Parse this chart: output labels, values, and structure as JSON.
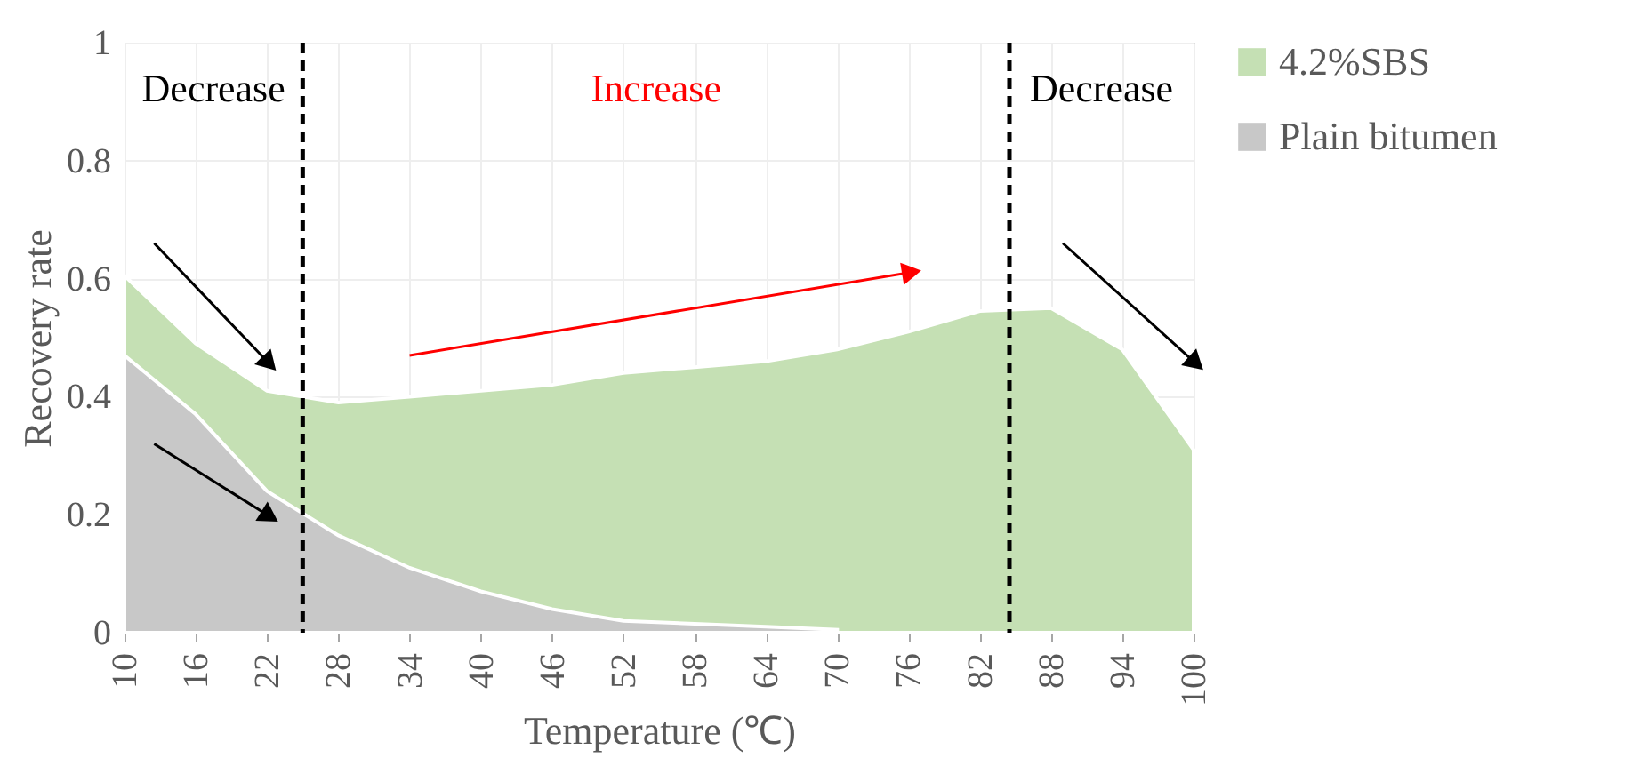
{
  "chart_data": {
    "type": "area",
    "xlabel": "Temperature (℃)",
    "ylabel": "Recovery rate",
    "x": [
      10,
      16,
      22,
      28,
      34,
      40,
      46,
      52,
      58,
      64,
      70,
      76,
      82,
      88,
      94,
      100
    ],
    "xlim": [
      10,
      100
    ],
    "xticks": [
      10,
      16,
      22,
      28,
      34,
      40,
      46,
      52,
      58,
      64,
      70,
      76,
      82,
      88,
      94,
      100
    ],
    "ylim": [
      0,
      1
    ],
    "yticks": [
      0,
      0.2,
      0.4,
      0.6,
      0.8,
      1
    ],
    "series": [
      {
        "name": "4.2%SBS",
        "color": "#c5e0b4",
        "values": [
          0.605,
          0.49,
          0.41,
          0.39,
          0.4,
          0.41,
          0.42,
          0.44,
          0.45,
          0.46,
          0.48,
          0.51,
          0.545,
          0.55,
          0.48,
          0.31
        ]
      },
      {
        "name": "Plain bitumen",
        "color": "#c8c8c8",
        "values": [
          0.47,
          0.37,
          0.24,
          0.165,
          0.11,
          0.07,
          0.04,
          0.02,
          0.015,
          0.01,
          0.005,
          null,
          null,
          null,
          null,
          null
        ]
      }
    ],
    "ref_lines": [
      {
        "axis": "x",
        "value": 25,
        "color": "#000000",
        "line_style": "dashed"
      },
      {
        "axis": "x",
        "value": 84.5,
        "color": "#000000",
        "line_style": "dashed"
      }
    ],
    "annotations": [
      "Decrease",
      "Increase",
      "Decrease"
    ],
    "grid": true,
    "legend": "right"
  }
}
